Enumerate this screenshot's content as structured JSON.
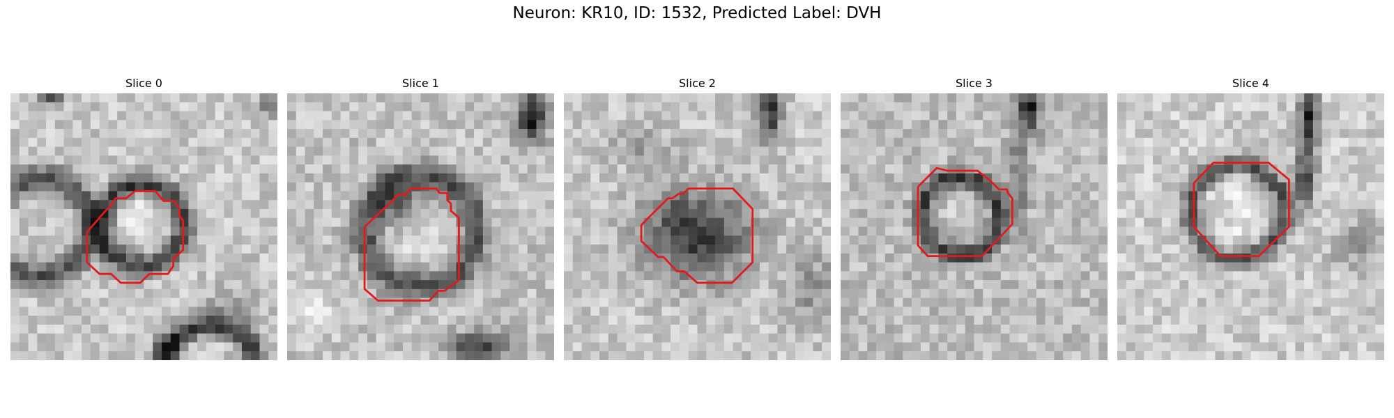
{
  "figure": {
    "title": "Neuron: KR10, ID: 1532, Predicted Label: DVH"
  },
  "panels": [
    {
      "title": "Slice 0",
      "contour_color": "#e31a1c",
      "image_description_name": "grayscale-microscopy-slice-0"
    },
    {
      "title": "Slice 1",
      "contour_color": "#e31a1c",
      "image_description_name": "grayscale-microscopy-slice-1"
    },
    {
      "title": "Slice 2",
      "contour_color": "#e31a1c",
      "image_description_name": "grayscale-microscopy-slice-2"
    },
    {
      "title": "Slice 3",
      "contour_color": "#e31a1c",
      "image_description_name": "grayscale-microscopy-slice-3"
    },
    {
      "title": "Slice 4",
      "contour_color": "#e31a1c",
      "image_description_name": "grayscale-microscopy-slice-4"
    }
  ]
}
